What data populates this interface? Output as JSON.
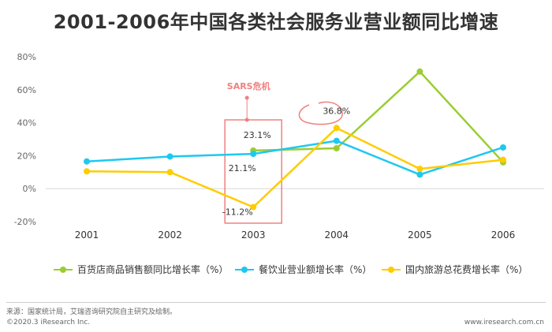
{
  "header": {
    "title": "2001-2006年中国各类社会服务业营业额同比增速"
  },
  "chart_data": {
    "type": "line",
    "categories": [
      "2001",
      "2002",
      "2003",
      "2004",
      "2005",
      "2006"
    ],
    "ylim": [
      -20,
      80
    ],
    "yticks": [
      -20,
      0,
      20,
      40,
      60,
      80
    ],
    "ytick_labels": [
      "-20%",
      "0%",
      "20%",
      "40%",
      "60%",
      "80%"
    ],
    "grid": false,
    "legend_position": "bottom",
    "series": [
      {
        "name": "百货店商品销售额同比增长率（%）",
        "color": "#9acd32",
        "values": [
          null,
          null,
          23.1,
          24.5,
          71.0,
          16.0
        ]
      },
      {
        "name": "餐饮业营业额增长率（%）",
        "color": "#1ec8f0",
        "values": [
          16.5,
          19.5,
          21.1,
          29.0,
          8.5,
          25.0
        ]
      },
      {
        "name": "国内旅游总花费增长率（%）",
        "color": "#ffcc00",
        "values": [
          10.5,
          10.0,
          -11.2,
          36.8,
          12.0,
          17.5
        ]
      }
    ],
    "data_labels": [
      {
        "series": 0,
        "index": 2,
        "text": "23.1%"
      },
      {
        "series": 1,
        "index": 2,
        "text": "21.1%"
      },
      {
        "series": 2,
        "index": 2,
        "text": "-11.2%"
      },
      {
        "series": 2,
        "index": 3,
        "text": "36.8%"
      }
    ],
    "annotations": {
      "sars": "SARS危机"
    }
  },
  "footer": {
    "source": "来源：国家统计局，艾瑞咨询研究院自主研究及绘制。",
    "copyright": "©2020.3 iResearch Inc.",
    "website": "www.iresearch.com.cn"
  },
  "colors": {
    "highlight": "#f08080",
    "axis": "#d9d9d9"
  }
}
